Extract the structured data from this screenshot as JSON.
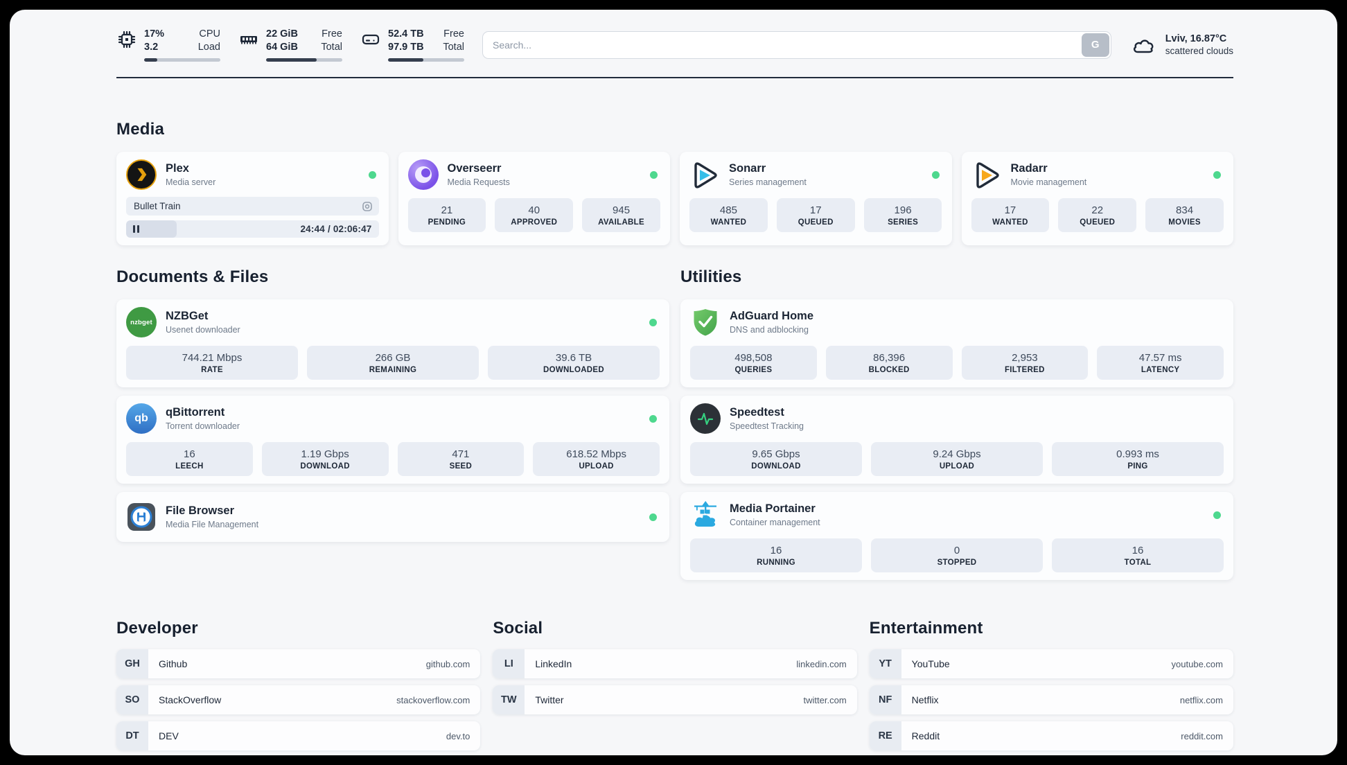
{
  "topbar": {
    "metrics": [
      {
        "icon": "cpu-icon",
        "value1": "17%",
        "value2": "3.2",
        "label1": "CPU",
        "label2": "Load",
        "progress": 17
      },
      {
        "icon": "memory-icon",
        "value1": "22 GiB",
        "value2": "64 GiB",
        "label1": "Free",
        "label2": "Total",
        "progress": 66
      },
      {
        "icon": "disk-icon",
        "value1": "52.4 TB",
        "value2": "97.9 TB",
        "label1": "Free",
        "label2": "Total",
        "progress": 46
      }
    ],
    "search": {
      "placeholder": "Search...",
      "button_label": "G"
    },
    "weather": {
      "location_temp": "Lviv, 16.87°C",
      "condition": "scattered clouds"
    }
  },
  "media": {
    "title": "Media",
    "plex": {
      "name": "Plex",
      "desc": "Media server",
      "online": true,
      "now_playing": "Bullet Train",
      "time": "24:44 / 02:06:47",
      "progress": 20
    },
    "overseerr": {
      "name": "Overseerr",
      "desc": "Media Requests",
      "online": true,
      "stats": [
        {
          "value": "21",
          "label": "PENDING"
        },
        {
          "value": "40",
          "label": "APPROVED"
        },
        {
          "value": "945",
          "label": "AVAILABLE"
        }
      ]
    },
    "sonarr": {
      "name": "Sonarr",
      "desc": "Series management",
      "online": true,
      "stats": [
        {
          "value": "485",
          "label": "WANTED"
        },
        {
          "value": "17",
          "label": "QUEUED"
        },
        {
          "value": "196",
          "label": "SERIES"
        }
      ]
    },
    "radarr": {
      "name": "Radarr",
      "desc": "Movie management",
      "online": true,
      "stats": [
        {
          "value": "17",
          "label": "WANTED"
        },
        {
          "value": "22",
          "label": "QUEUED"
        },
        {
          "value": "834",
          "label": "MOVIES"
        }
      ]
    }
  },
  "documents": {
    "title": "Documents & Files",
    "nzbget": {
      "name": "NZBGet",
      "desc": "Usenet downloader",
      "online": true,
      "logo_text": "nzbget",
      "stats": [
        {
          "value": "744.21 Mbps",
          "label": "RATE"
        },
        {
          "value": "266 GB",
          "label": "REMAINING"
        },
        {
          "value": "39.6 TB",
          "label": "DOWNLOADED"
        }
      ]
    },
    "qbittorrent": {
      "name": "qBittorrent",
      "desc": "Torrent downloader",
      "online": true,
      "logo_text": "qb",
      "stats": [
        {
          "value": "16",
          "label": "LEECH"
        },
        {
          "value": "1.19 Gbps",
          "label": "DOWNLOAD"
        },
        {
          "value": "471",
          "label": "SEED"
        },
        {
          "value": "618.52 Mbps",
          "label": "UPLOAD"
        }
      ]
    },
    "filebrowser": {
      "name": "File Browser",
      "desc": "Media File Management",
      "online": true
    }
  },
  "utilities": {
    "title": "Utilities",
    "adguard": {
      "name": "AdGuard Home",
      "desc": "DNS and adblocking",
      "stats": [
        {
          "value": "498,508",
          "label": "QUERIES"
        },
        {
          "value": "86,396",
          "label": "BLOCKED"
        },
        {
          "value": "2,953",
          "label": "FILTERED"
        },
        {
          "value": "47.57 ms",
          "label": "LATENCY"
        }
      ]
    },
    "speedtest": {
      "name": "Speedtest",
      "desc": "Speedtest Tracking",
      "stats": [
        {
          "value": "9.65 Gbps",
          "label": "DOWNLOAD"
        },
        {
          "value": "9.24 Gbps",
          "label": "UPLOAD"
        },
        {
          "value": "0.993 ms",
          "label": "PING"
        }
      ]
    },
    "portainer": {
      "name": "Media Portainer",
      "desc": "Container management",
      "online": true,
      "stats": [
        {
          "value": "16",
          "label": "RUNNING"
        },
        {
          "value": "0",
          "label": "STOPPED"
        },
        {
          "value": "16",
          "label": "TOTAL"
        }
      ]
    }
  },
  "links": {
    "developer": {
      "title": "Developer",
      "items": [
        {
          "abbr": "GH",
          "name": "Github",
          "url": "github.com"
        },
        {
          "abbr": "SO",
          "name": "StackOverflow",
          "url": "stackoverflow.com"
        },
        {
          "abbr": "DT",
          "name": "DEV",
          "url": "dev.to"
        }
      ]
    },
    "social": {
      "title": "Social",
      "items": [
        {
          "abbr": "LI",
          "name": "LinkedIn",
          "url": "linkedin.com"
        },
        {
          "abbr": "TW",
          "name": "Twitter",
          "url": "twitter.com"
        }
      ]
    },
    "entertainment": {
      "title": "Entertainment",
      "items": [
        {
          "abbr": "YT",
          "name": "YouTube",
          "url": "youtube.com"
        },
        {
          "abbr": "NF",
          "name": "Netflix",
          "url": "netflix.com"
        },
        {
          "abbr": "RE",
          "name": "Reddit",
          "url": "reddit.com"
        }
      ]
    }
  },
  "colors": {
    "status_online": "#4ed88e",
    "plex_amber": "#e5a00d",
    "sonarr_blue": "#35bee8",
    "radarr_amber": "#f7a81b",
    "overseerr_purple": "#7b52e8",
    "nzbget_green": "#3f9a43",
    "qbittorrent_blue": "#2f6fc4",
    "adguard_green": "#57bd5b",
    "speedtest_green": "#35d180",
    "portainer_blue": "#2aa9e0",
    "divider_dark": "#222c3d"
  }
}
